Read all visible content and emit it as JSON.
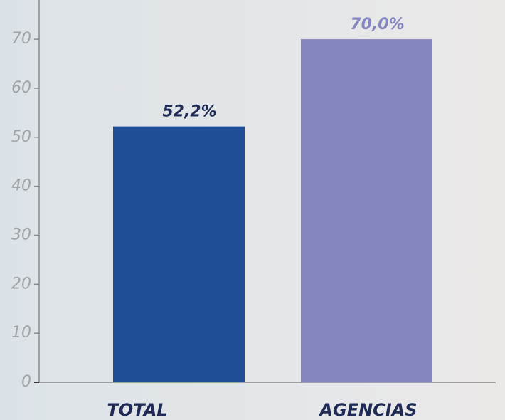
{
  "chart_data": {
    "type": "bar",
    "categories": [
      "TOTAL",
      "AGENCIAS"
    ],
    "values": [
      52.2,
      70.0
    ],
    "value_labels": [
      "52,2%",
      "70,0%"
    ],
    "colors": [
      "#1f4e96",
      "#8585c0"
    ],
    "label_colors": [
      "#1f2a55",
      "#8585c0"
    ],
    "ylim": [
      0,
      78
    ],
    "yticks": [
      0,
      10,
      20,
      30,
      40,
      50,
      60,
      70
    ],
    "grid": false
  }
}
